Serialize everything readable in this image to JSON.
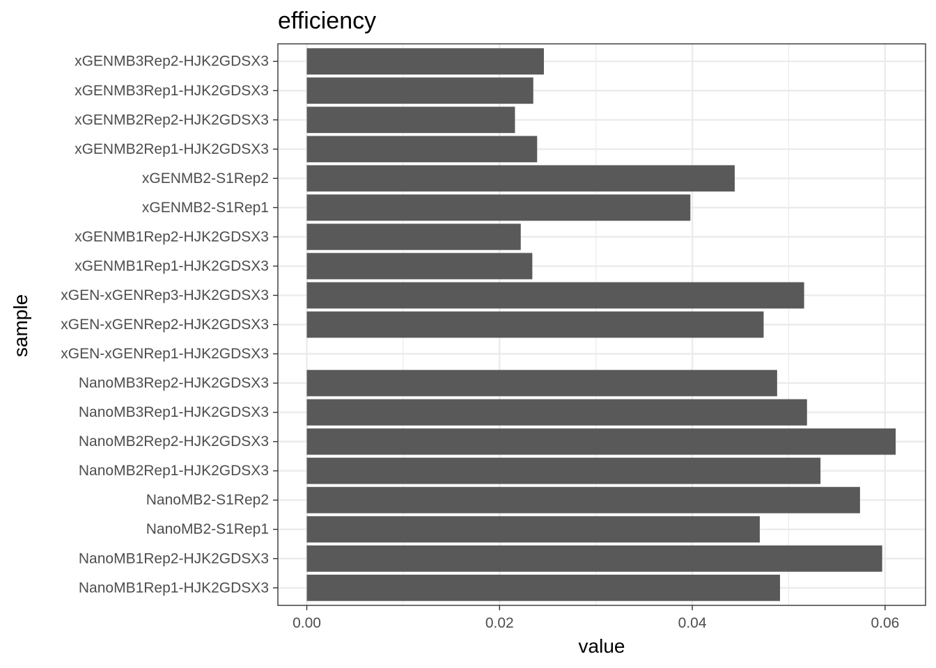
{
  "chart_data": {
    "type": "bar",
    "orientation": "horizontal",
    "title": "efficiency",
    "xlabel": "value",
    "ylabel": "sample",
    "xlim": [
      -0.003,
      0.0642
    ],
    "xticks": [
      0.0,
      0.02,
      0.04,
      0.06
    ],
    "xtick_labels": [
      "0.00",
      "0.02",
      "0.04",
      "0.06"
    ],
    "grid": true,
    "categories": [
      "NanoMB1Rep1-HJK2GDSX3",
      "NanoMB1Rep2-HJK2GDSX3",
      "NanoMB2-S1Rep1",
      "NanoMB2-S1Rep2",
      "NanoMB2Rep1-HJK2GDSX3",
      "NanoMB2Rep2-HJK2GDSX3",
      "NanoMB3Rep1-HJK2GDSX3",
      "NanoMB3Rep2-HJK2GDSX3",
      "xGEN-xGENRep1-HJK2GDSX3",
      "xGEN-xGENRep2-HJK2GDSX3",
      "xGEN-xGENRep3-HJK2GDSX3",
      "xGENMB1Rep1-HJK2GDSX3",
      "xGENMB1Rep2-HJK2GDSX3",
      "xGENMB2-S1Rep1",
      "xGENMB2-S1Rep2",
      "xGENMB2Rep1-HJK2GDSX3",
      "xGENMB2Rep2-HJK2GDSX3",
      "xGENMB3Rep1-HJK2GDSX3",
      "xGENMB3Rep2-HJK2GDSX3"
    ],
    "values": [
      0.0491,
      0.0597,
      0.047,
      0.0574,
      0.0533,
      0.0611,
      0.0519,
      0.0488,
      null,
      0.0474,
      0.0516,
      0.0234,
      0.0222,
      0.0398,
      0.0444,
      0.0239,
      0.0216,
      0.0235,
      0.0246
    ],
    "colors": {
      "bar": "#595959",
      "grid": "#ebebeb",
      "border": "#333333",
      "tick": "#333333",
      "tick_label": "#4d4d4d",
      "background": "#ffffff"
    }
  }
}
